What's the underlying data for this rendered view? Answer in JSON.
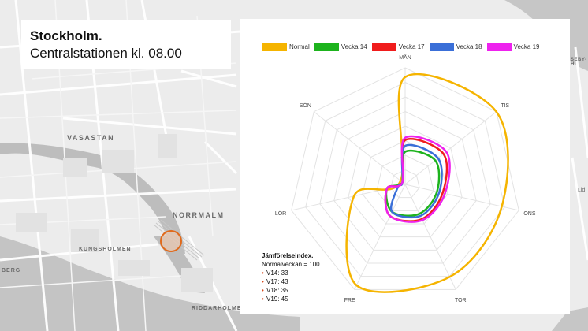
{
  "map": {
    "labels": {
      "vasastan": "VASASTAN",
      "normalm": "NORRMALM",
      "kungsholmen": "KUNGSHOLMEN",
      "riddarholmen": "RIDDARHOLMEN",
      "berg": "BERG",
      "seby": "SEBY-H",
      "lid": "Lid"
    },
    "marker_color": "#e06a1c"
  },
  "title": {
    "city": "Stockholm.",
    "subtitle": "Centralstationen kl. 08.00"
  },
  "legend": [
    {
      "label": "Normal",
      "color": "#f5b400"
    },
    {
      "label": "Vecka 14",
      "color": "#1db31d"
    },
    {
      "label": "Vecka 17",
      "color": "#f01c1c"
    },
    {
      "label": "Vecka 18",
      "color": "#3a6fd8"
    },
    {
      "label": "Vecka 19",
      "color": "#ee22ee"
    }
  ],
  "info": {
    "heading": "Jämförelseindex.",
    "baseline": "Normalveckan = 100",
    "items": [
      "V14: 33",
      "V17: 43",
      "V18: 35",
      "V19: 45"
    ]
  },
  "chart_data": {
    "type": "radar",
    "axes": [
      "MÅN",
      "TIS",
      "ONS",
      "TOR",
      "FRE",
      "LÖR",
      "SÖN"
    ],
    "rmax": 100,
    "series": [
      {
        "name": "Normal",
        "color": "#f5b400",
        "values": [
          92,
          100,
          85,
          88,
          96,
          45,
          5
        ]
      },
      {
        "name": "Vecka 14",
        "color": "#1db31d",
        "values": [
          28,
          33,
          28,
          28,
          26,
          16,
          3
        ]
      },
      {
        "name": "Vecka 17",
        "color": "#f01c1c",
        "values": [
          38,
          42,
          33,
          33,
          30,
          16,
          3
        ]
      },
      {
        "name": "Vecka 18",
        "color": "#3a6fd8",
        "values": [
          33,
          36,
          30,
          30,
          26,
          6,
          3
        ]
      },
      {
        "name": "Vecka 19",
        "color": "#ee22ee",
        "values": [
          40,
          45,
          35,
          34,
          30,
          16,
          3
        ]
      }
    ]
  }
}
